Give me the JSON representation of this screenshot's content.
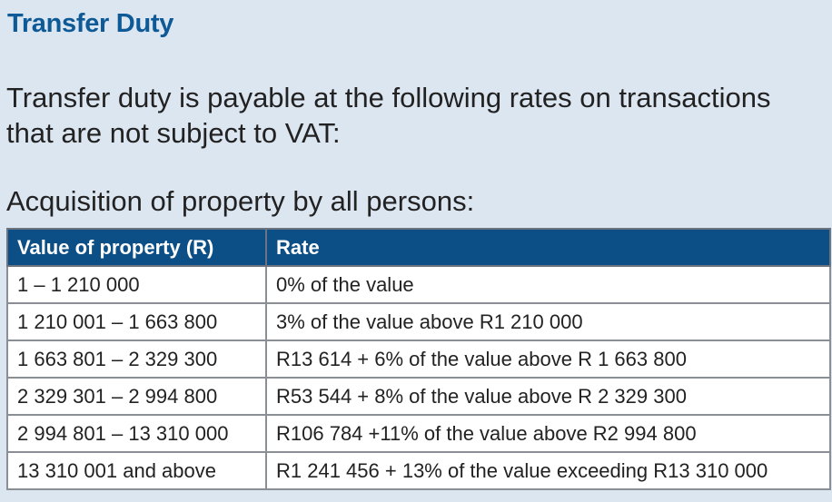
{
  "heading": "Transfer Duty",
  "intro": "Transfer duty is payable at the following rates on transactions that are not subject to VAT:",
  "subheading": "Acquisition of property by all persons:",
  "table": {
    "headers": [
      "Value of property (R)",
      "Rate"
    ],
    "rows": [
      [
        "1 – 1 210 000",
        "0% of the value"
      ],
      [
        "1 210 001 – 1 663 800",
        "3% of the value above R1 210 000"
      ],
      [
        "1 663 801 – 2 329 300",
        "R13 614 + 6% of the value above R 1 663 800"
      ],
      [
        "2 329 301 – 2 994 800",
        "R53 544 + 8% of the value above R 2 329 300"
      ],
      [
        "2 994 801 – 13 310 000",
        "R106 784 +11% of the value above R2 994 800"
      ],
      [
        "13 310 001 and above",
        "R1 241 456 + 13% of the value exceeding R13 310 000"
      ]
    ]
  },
  "colors": {
    "heading": "#0d5a96",
    "background": "#dce6f1",
    "table_header": "#0c4f86"
  }
}
